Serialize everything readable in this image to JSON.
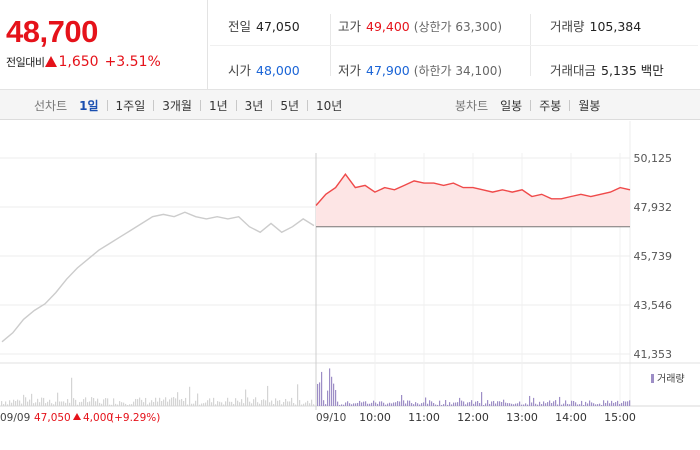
{
  "quote": {
    "price": "48,700",
    "change_label": "전일대비",
    "change_value": "1,650",
    "change_pct": "+3.51%",
    "stats": {
      "prev_close": {
        "label": "전일",
        "value": "47,050"
      },
      "high": {
        "label": "고가",
        "value": "49,400",
        "sub": "(상한가 63,300)"
      },
      "volume": {
        "label": "거래량",
        "value": "105,384"
      },
      "open": {
        "label": "시가",
        "value": "48,000"
      },
      "low": {
        "label": "저가",
        "value": "47,900",
        "sub": "(하한가 34,100)"
      },
      "turnover": {
        "label": "거래대금",
        "value": "5,135 백만"
      }
    }
  },
  "tabs": {
    "line": {
      "title": "선차트",
      "items": [
        "1일",
        "1주일",
        "3개월",
        "1년",
        "3년",
        "5년",
        "10년"
      ],
      "active": 0
    },
    "candle": {
      "title": "봉차트",
      "items": [
        "일봉",
        "주봉",
        "월봉"
      ]
    }
  },
  "colors": {
    "up": "#e5121a",
    "down": "#1a64d6",
    "prev_line": "#cccccc",
    "volume_prev": "#d4d4d4",
    "volume_today": "#9d8ec6"
  },
  "chart_data": {
    "type": "line",
    "y_ticks": [
      "50,125",
      "47,932",
      "45,739",
      "43,546",
      "41,353"
    ],
    "ylim": [
      41353,
      50125
    ],
    "baseline": 47050,
    "grid": true,
    "volume_legend": "거래량",
    "prev_day_label": "09/09",
    "prev_day_summary": {
      "close": "47,050",
      "change": "4,000",
      "pct": "(+9.29%)"
    },
    "today_label": "09/10",
    "x_ticks": [
      "10:00",
      "11:00",
      "12:00",
      "13:00",
      "14:00",
      "15:00"
    ],
    "series": [
      {
        "session": "09/09",
        "points": [
          41900,
          42300,
          42900,
          43300,
          43600,
          44100,
          44700,
          45200,
          45600,
          46000,
          46300,
          46600,
          46900,
          47200,
          47500,
          47600,
          47500,
          47700,
          47500,
          47400,
          47500,
          47400,
          47500,
          47050,
          46800,
          47200,
          46800,
          47050,
          47400,
          47100
        ]
      },
      {
        "session": "09/10",
        "points": [
          48000,
          48500,
          48800,
          49400,
          48800,
          48900,
          48600,
          48800,
          48700,
          48900,
          49100,
          49000,
          49000,
          48900,
          49000,
          48800,
          48800,
          48700,
          48600,
          48700,
          48600,
          48700,
          48400,
          48500,
          48300,
          48300,
          48400,
          48500,
          48400,
          48500,
          48600,
          48800,
          48700
        ]
      }
    ]
  }
}
